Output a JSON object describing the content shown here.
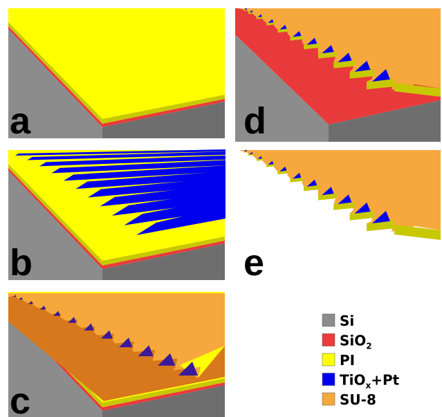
{
  "panels": [
    {
      "label": "a"
    },
    {
      "label": "b"
    },
    {
      "label": "c"
    },
    {
      "label": "d"
    },
    {
      "label": "e"
    }
  ],
  "legend": [
    {
      "label": "Si",
      "color": "#8c8c8c"
    },
    {
      "label": "SiO",
      "sub": "2",
      "color": "#ee3b3b"
    },
    {
      "label": "PI",
      "color": "#ffff00"
    },
    {
      "label": "TiO",
      "sub": "x",
      "after": "+Pt",
      "color": "#0000ee"
    },
    {
      "label": "SU-8",
      "color": "#f6a83c"
    }
  ]
}
